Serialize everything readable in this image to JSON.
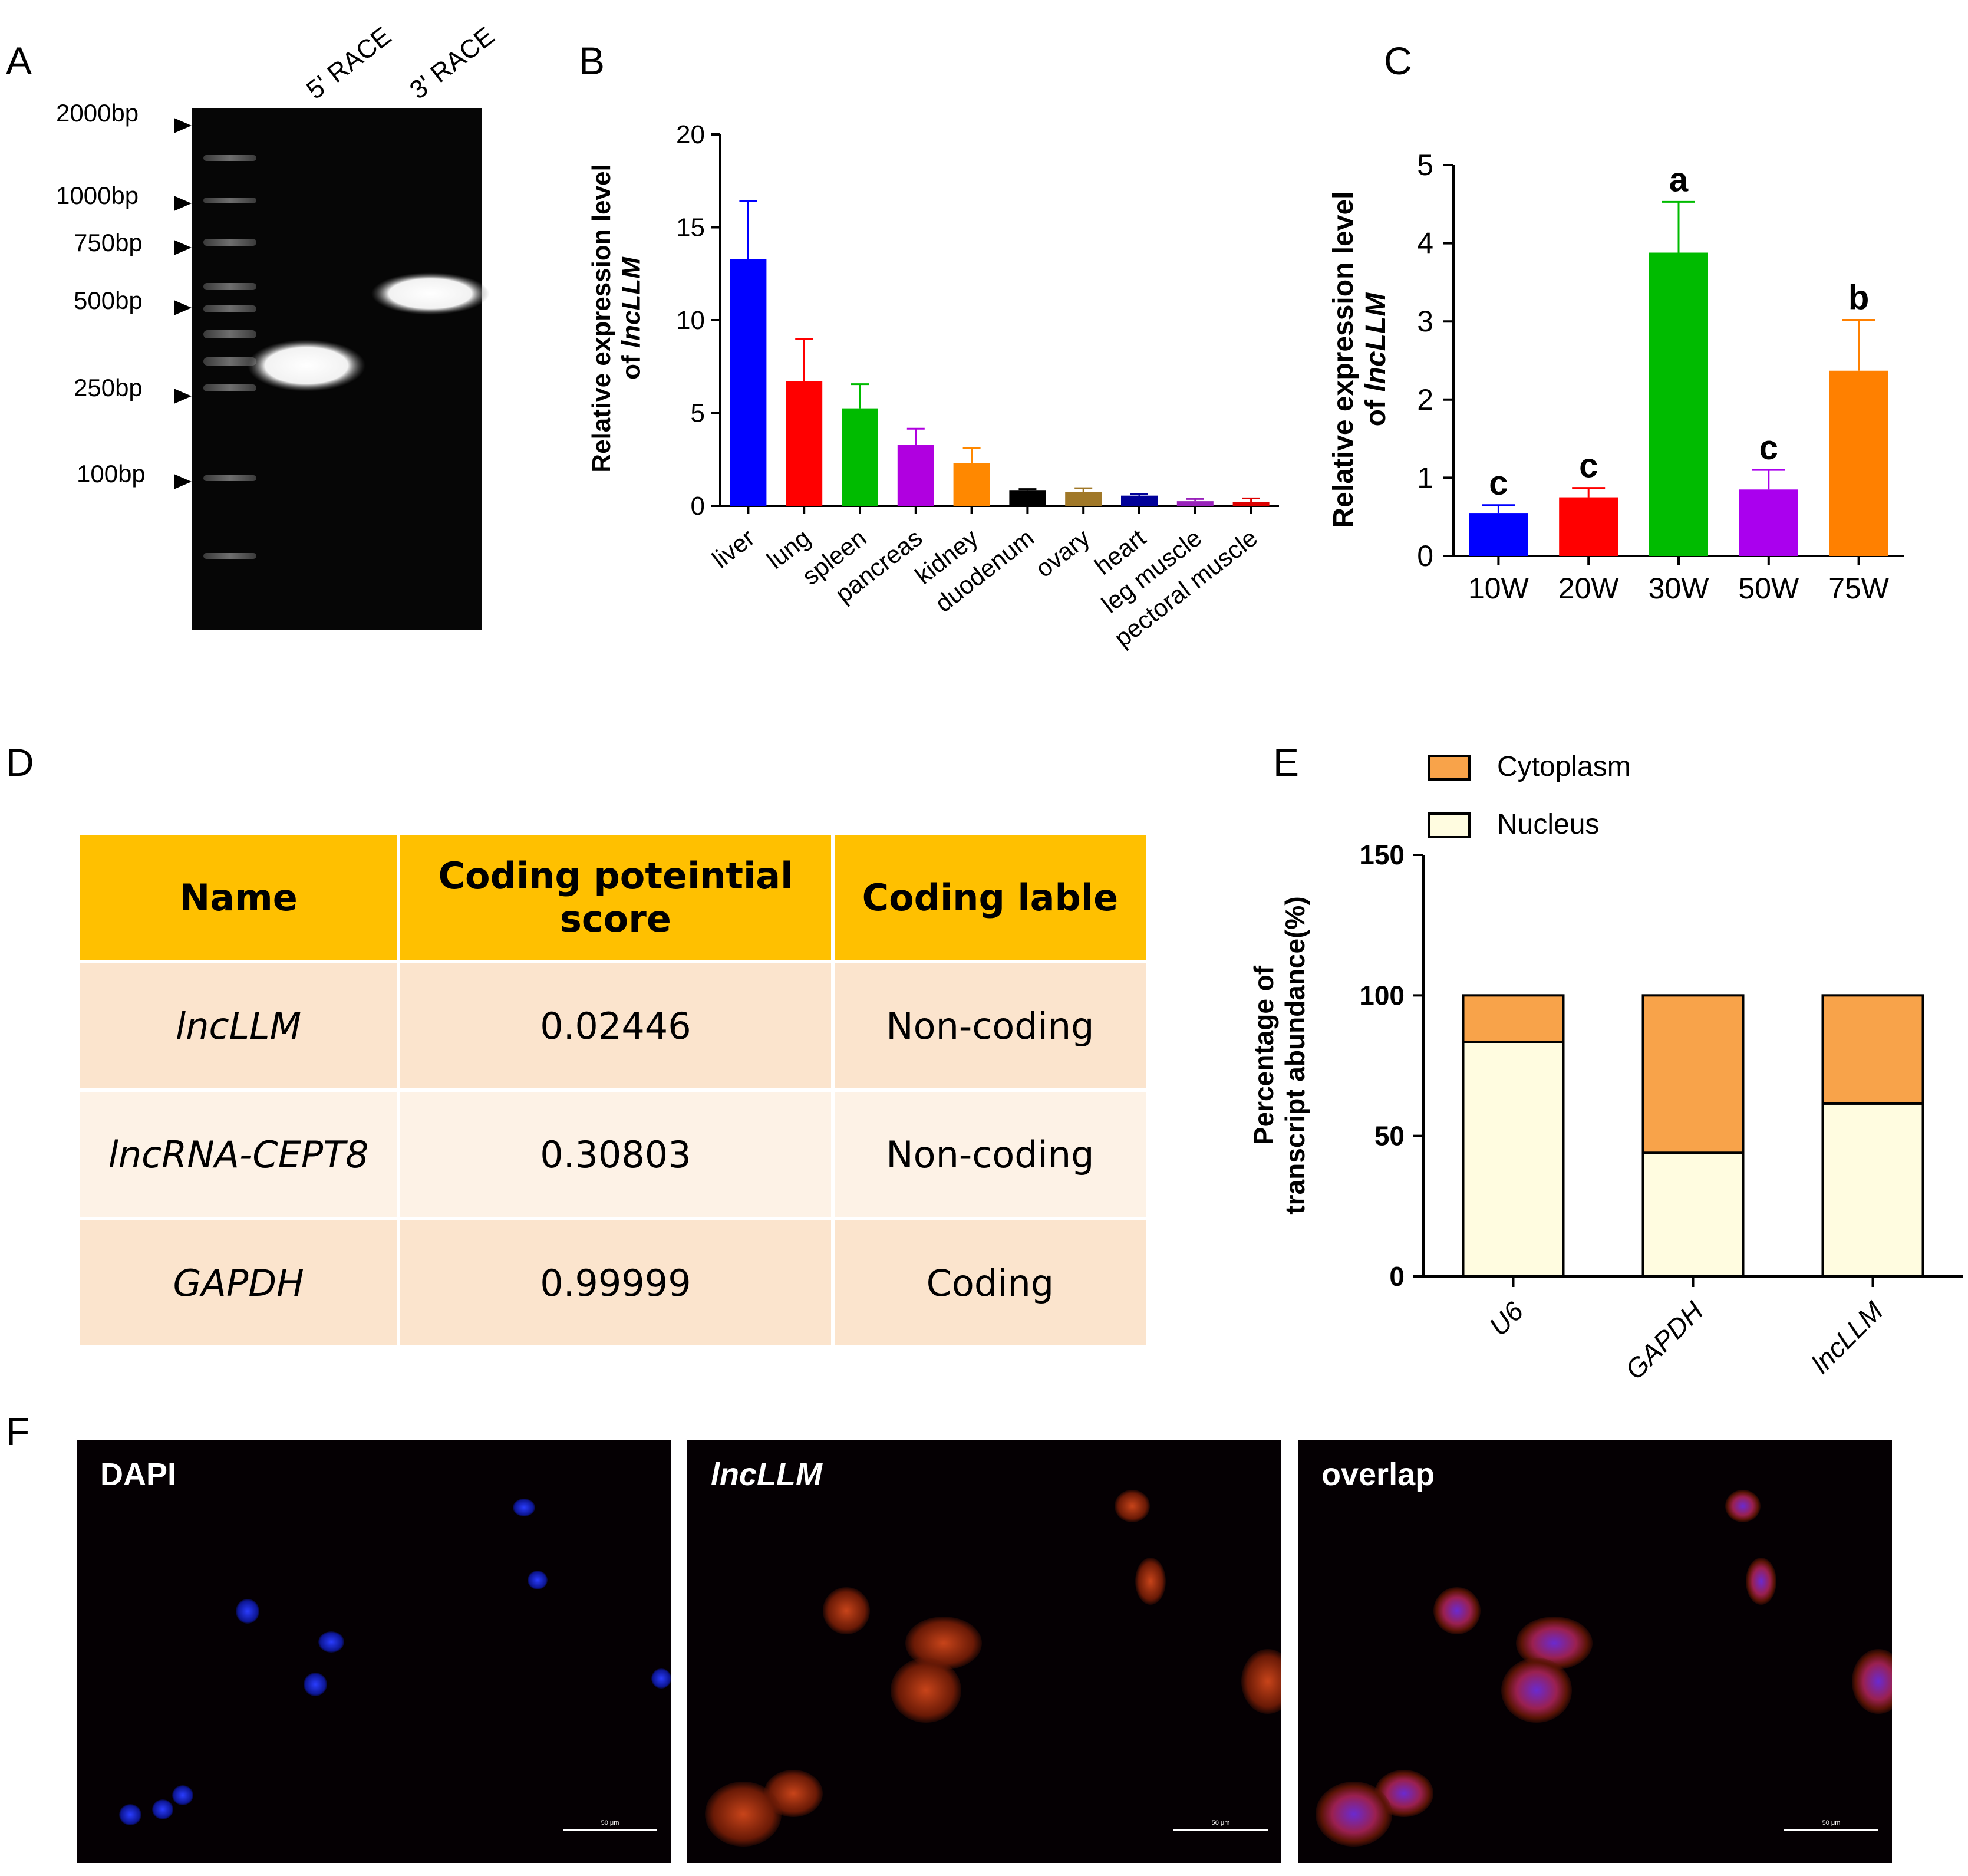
{
  "panel_labels": {
    "a": "A",
    "b": "B",
    "c": "C",
    "d": "D",
    "e": "E",
    "f": "F"
  },
  "gel": {
    "lanes": [
      "5' RACE",
      "3' RACE"
    ],
    "markers": [
      "2000bp",
      "1000bp",
      "750bp",
      "500bp",
      "250bp",
      "100bp"
    ]
  },
  "chart_data": [
    {
      "type": "bar",
      "panel": "B",
      "ylabel_line1": "Relative expression  level",
      "ylabel_line2_prefix": "of ",
      "ylabel_line2_gene": "lncLLM",
      "categories": [
        "liver",
        "lung",
        "spleen",
        "pancreas",
        "kidney",
        "duodenum",
        "ovary",
        "heart",
        "leg muscle",
        "pectoral muscle"
      ],
      "values": [
        13.3,
        6.7,
        5.25,
        3.3,
        2.3,
        0.85,
        0.75,
        0.55,
        0.25,
        0.2
      ],
      "errors": [
        3.1,
        2.3,
        1.3,
        0.85,
        0.8,
        0.05,
        0.2,
        0.08,
        0.12,
        0.2
      ],
      "colors": [
        "#0000ff",
        "#ff0000",
        "#00bb00",
        "#b000e0",
        "#ff8800",
        "#000000",
        "#a07828",
        "#000099",
        "#9922bb",
        "#dd0000"
      ],
      "ylim": [
        0,
        20
      ],
      "yticks": [
        "0",
        "5",
        "10",
        "15",
        "20"
      ]
    },
    {
      "type": "bar",
      "panel": "C",
      "ylabel_line1": "Relative expression  level",
      "ylabel_line2_prefix": "of ",
      "ylabel_line2_gene": "lncLLM",
      "categories": [
        "10W",
        "20W",
        "30W",
        "50W",
        "75W"
      ],
      "values": [
        0.55,
        0.75,
        3.88,
        0.85,
        2.37
      ],
      "errors": [
        0.1,
        0.12,
        0.65,
        0.25,
        0.65
      ],
      "letters": [
        "c",
        "c",
        "a",
        "c",
        "b"
      ],
      "colors": [
        "#0000ff",
        "#ff0000",
        "#00bb00",
        "#aa00ee",
        "#ff8000"
      ],
      "ylim": [
        0,
        5
      ],
      "yticks": [
        "0",
        "1",
        "2",
        "3",
        "4",
        "5"
      ]
    },
    {
      "type": "bar",
      "stacked": true,
      "panel": "E",
      "ylabel_line1": "Percentage of",
      "ylabel_line2": "transcript abundance(%)",
      "categories": [
        "U6",
        "GAPDH",
        "lncLLM"
      ],
      "series": [
        {
          "name": "Nucleus",
          "values": [
            83.5,
            44,
            61.5
          ],
          "color": "#fffce0"
        },
        {
          "name": "Cytoplasm",
          "values": [
            16.5,
            56,
            38.5
          ],
          "color": "#f8a34a"
        }
      ],
      "ylim": [
        0,
        150
      ],
      "yticks": [
        "0",
        "50",
        "100",
        "150"
      ],
      "legend_position": "top-left"
    }
  ],
  "table": {
    "headers": [
      "Name",
      "Coding poteintial",
      "score",
      "Coding lable"
    ],
    "rows": [
      {
        "name": "lncLLM",
        "score": "0.02446",
        "label": "Non-coding"
      },
      {
        "name": "lncRNA-CEPT8",
        "score": "0.30803",
        "label": "Non-coding"
      },
      {
        "name": "GAPDH",
        "score": "0.99999",
        "label": "Coding"
      }
    ]
  },
  "microscopy": {
    "panels": [
      "DAPI",
      "lncLLM",
      "overlap"
    ],
    "scale": "50 μm"
  }
}
